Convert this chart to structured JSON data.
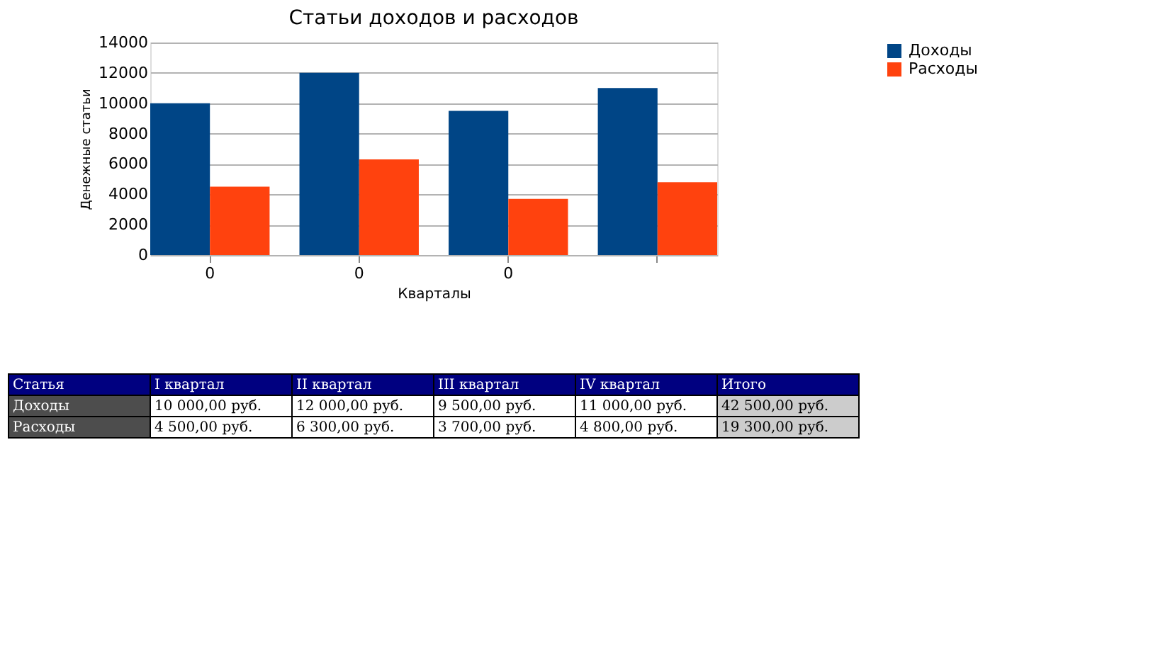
{
  "chart_data": {
    "type": "bar",
    "title": "Статьи доходов и расходов",
    "xlabel": "Кварталы",
    "ylabel": "Денежные статьи",
    "categories": [
      "0",
      "0",
      "0",
      null
    ],
    "series": [
      {
        "name": "Доходы",
        "color": "#004586",
        "values": [
          10000,
          12000,
          9500,
          11000
        ],
        "value_labels": [
          "10 000,00 руб.",
          "12 000,00 руб.",
          "9 500,00 руб.",
          "11 000,00 руб."
        ]
      },
      {
        "name": "Расходы",
        "color": "#ff420e",
        "values": [
          4500,
          6300,
          3700,
          4800
        ],
        "value_labels": [
          "4 500,00 руб.",
          "6 300,00 руб.",
          "3 700,00 руб.",
          "4 800,00 руб."
        ]
      }
    ],
    "data_labels": true,
    "ylim": [
      0,
      14000
    ],
    "yticks": [
      0,
      2000,
      4000,
      6000,
      8000,
      10000,
      12000,
      14000
    ],
    "grid": "y",
    "legend": "right",
    "annotations": [
      "Статья",
      "I квартал",
      "II квартал",
      "III квартал",
      "IV квартал",
      "Итого",
      "42 500,00 руб.",
      "19 300,00 руб."
    ]
  }
}
